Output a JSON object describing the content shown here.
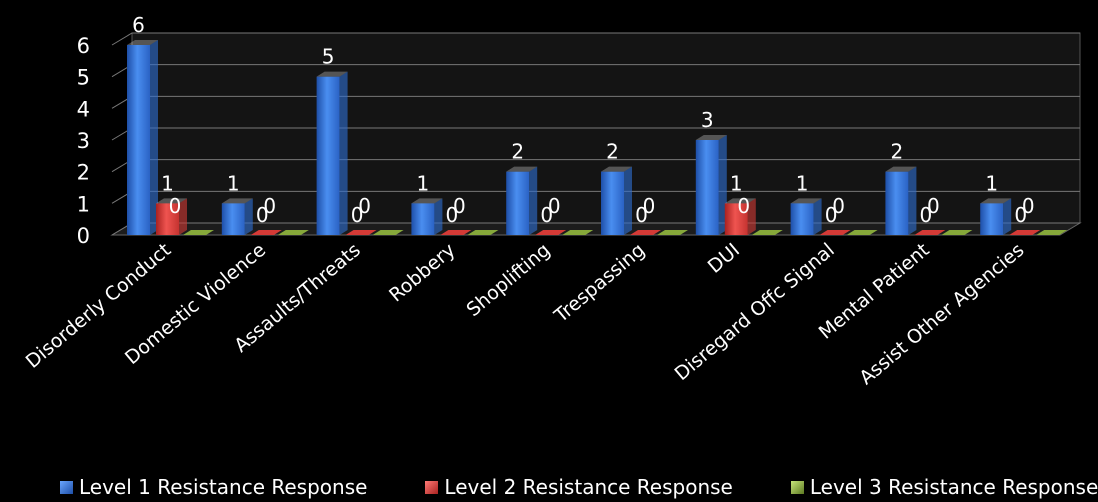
{
  "chart_data": {
    "type": "bar",
    "categories": [
      "Disorderly Conduct",
      "Domestic Violence",
      "Assaults/Threats",
      "Robbery",
      "Shoplifting",
      "Trespassing",
      "DUI",
      "Disregard Offc Signal",
      "Mental Patient",
      "Assist Other Agencies"
    ],
    "series": [
      {
        "name": "Level 1 Resistance Response",
        "values": [
          6,
          1,
          5,
          1,
          2,
          2,
          3,
          1,
          2,
          1
        ],
        "color": "#2f6fd4"
      },
      {
        "name": "Level 2 Resistance Response",
        "values": [
          1,
          0,
          0,
          0,
          0,
          0,
          1,
          0,
          0,
          0
        ],
        "color": "#d43a36"
      },
      {
        "name": "Level 3 Resistance Response",
        "values": [
          0,
          0,
          0,
          0,
          0,
          0,
          0,
          0,
          0,
          0
        ],
        "color": "#86a83a"
      }
    ],
    "y_ticks": [
      0,
      1,
      2,
      3,
      4,
      5,
      6
    ],
    "ylim": [
      0,
      6
    ],
    "grid": true,
    "legend_position": "bottom"
  }
}
